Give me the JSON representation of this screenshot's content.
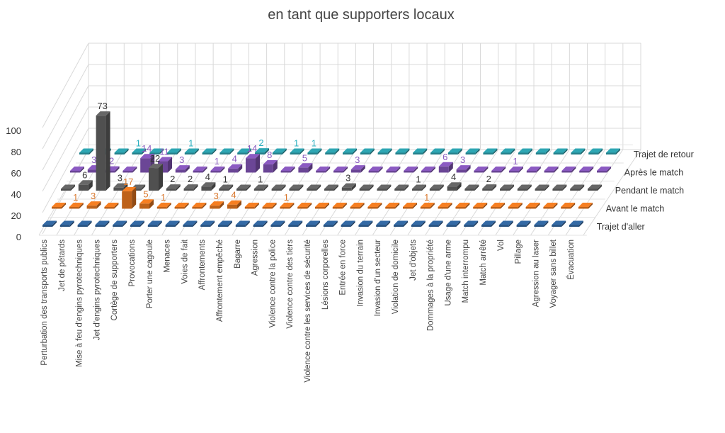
{
  "chart_data": {
    "type": "bar",
    "subtype": "3d-column",
    "title": "en tant que supporters locaux",
    "zlim": [
      0,
      100
    ],
    "zticks": [
      "0",
      "20",
      "40",
      "60",
      "80",
      "100"
    ],
    "grid": true,
    "categories": [
      "Perturbation des transports publics",
      "Jet de pétards",
      "Mise à feu d'engins pyrotechniques",
      "Jet d'engins pyrotechniques",
      "Cortège de supporters",
      "Provocations",
      "Porter une cagoule",
      "Menaces",
      "Voies de fait",
      "Affrontements",
      "Affrontement empêché",
      "Bagarre",
      "Agression",
      "Violence contre la police",
      "Violence contre des tiers",
      "Violence contre les services de sécurité",
      "Lésions corporelles",
      "Entrée en force",
      "Invasion du terrain",
      "Invasion d'un secteur",
      "Violation de domicile",
      "Jet d'objets",
      "Dommages à la propriété",
      "Usage d'une arme",
      "Match interrompu",
      "Match arrêté",
      "Vol",
      "Pillage",
      "Agression au laser",
      "Voyager sans billet",
      "Évacuation"
    ],
    "series": [
      {
        "name": "Trajet d'aller",
        "color": "#2f6096",
        "label_color": "#2f6096",
        "values": [
          0,
          0,
          0,
          0,
          0,
          0,
          0,
          0,
          0,
          0,
          0,
          0,
          0,
          0,
          0,
          0,
          0,
          0,
          0,
          0,
          0,
          0,
          0,
          0,
          0,
          0,
          0,
          0,
          0,
          0,
          0
        ]
      },
      {
        "name": "Avant le match",
        "color": "#e0731f",
        "label_color": "#d9772c",
        "values": [
          0,
          1,
          3,
          0,
          17,
          5,
          1,
          0,
          0,
          3,
          4,
          0,
          0,
          1,
          0,
          0,
          0,
          0,
          0,
          0,
          0,
          1,
          0,
          0,
          0,
          0,
          0,
          0,
          0,
          0,
          0
        ]
      },
      {
        "name": "Pendant le match",
        "color": "#5e5e5e",
        "label_color": "#333333",
        "values": [
          0,
          6,
          73,
          3,
          0,
          22,
          2,
          2,
          4,
          1,
          0,
          1,
          0,
          0,
          0,
          0,
          3,
          0,
          0,
          0,
          1,
          0,
          4,
          0,
          2,
          0,
          0,
          0,
          0,
          0,
          0
        ]
      },
      {
        "name": "Après le match",
        "color": "#7e52b0",
        "label_color": "#8a5cc0",
        "values": [
          0,
          3,
          2,
          0,
          14,
          11,
          3,
          0,
          1,
          4,
          14,
          8,
          0,
          5,
          0,
          0,
          3,
          0,
          0,
          0,
          0,
          6,
          3,
          0,
          0,
          1,
          0,
          0,
          0,
          0,
          0
        ]
      },
      {
        "name": "Trajet de retour",
        "color": "#2a97a3",
        "label_color": "#2ab0c0",
        "values": [
          0,
          0,
          0,
          1,
          0,
          0,
          1,
          0,
          0,
          0,
          2,
          0,
          1,
          1,
          0,
          0,
          0,
          0,
          0,
          0,
          0,
          0,
          0,
          0,
          0,
          0,
          0,
          0,
          0,
          0,
          0
        ]
      }
    ]
  }
}
